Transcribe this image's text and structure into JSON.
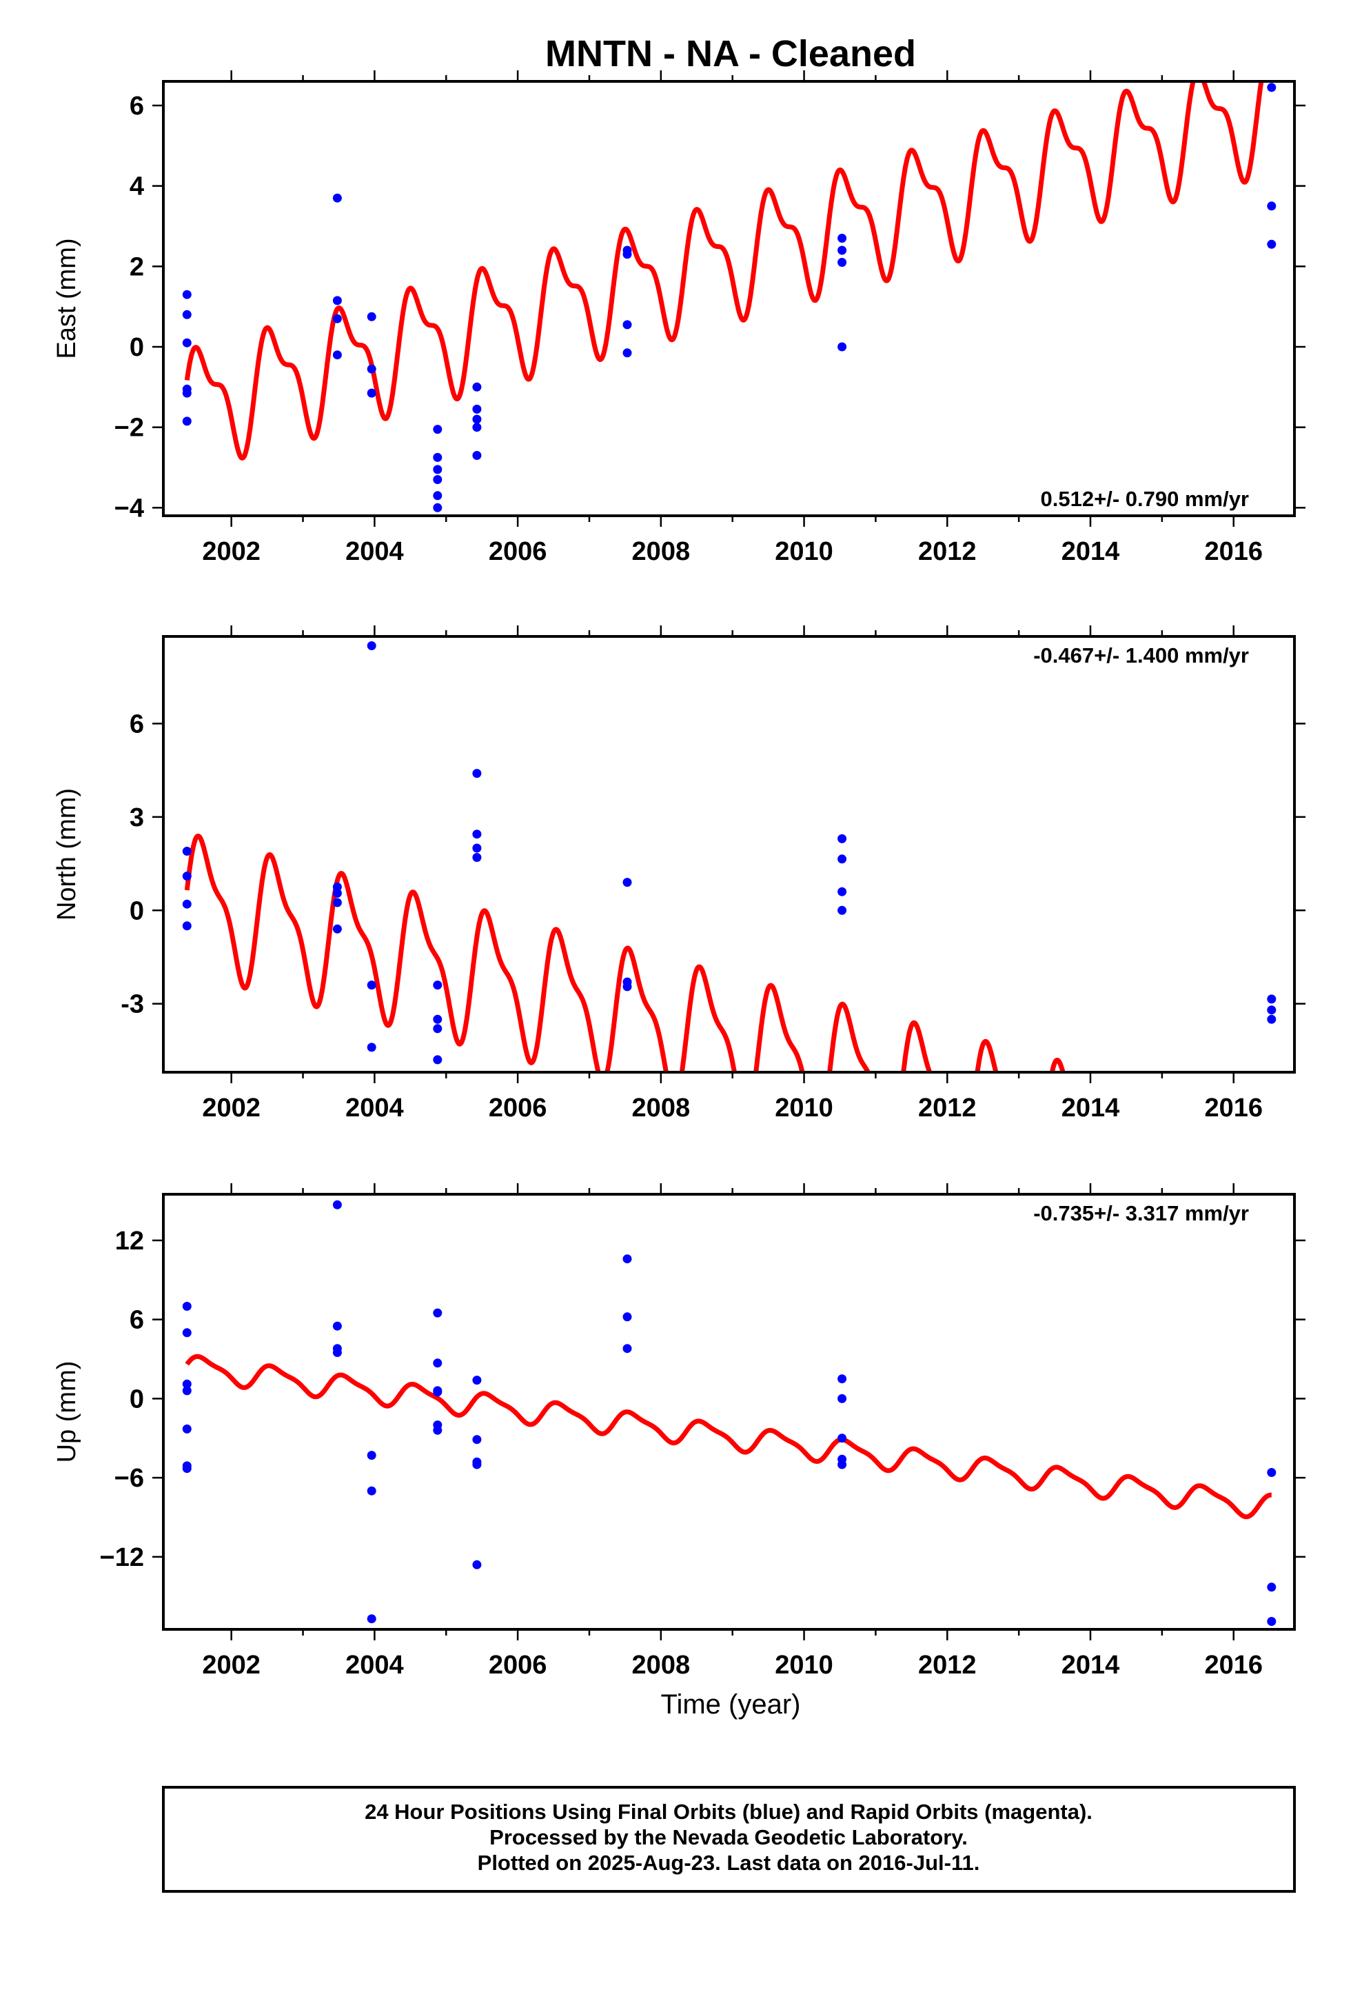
{
  "title": "MNTN  - NA - Cleaned",
  "xlabel": "Time (year)",
  "footer": {
    "line1": "24 Hour Positions Using Final Orbits (blue) and Rapid Orbits (magenta).",
    "line2": "Processed by the Nevada Geodetic Laboratory.",
    "line3": "Plotted on 2025-Aug-23. Last data on 2016-Jul-11."
  },
  "colors": {
    "data": "#0000ff",
    "model": "#ff0000",
    "frame": "#000000"
  },
  "chart_data": [
    {
      "type": "scatter",
      "ylabel": "East (mm)",
      "rate_label": "0.512+/- 0.790 mm/yr",
      "rate_position": "bottom-right",
      "xlim": [
        2001.05,
        2016.85
      ],
      "ylim": [
        -4.2,
        6.6
      ],
      "xticks": [
        2002,
        2004,
        2006,
        2008,
        2010,
        2012,
        2014,
        2016
      ],
      "yticks": [
        -4,
        -2,
        0,
        2,
        4,
        6
      ],
      "ytick_labels": [
        "−4",
        "−2",
        "0",
        "2",
        "4",
        "6"
      ],
      "show_x_tick_labels": true,
      "points": [
        [
          2001.38,
          1.3
        ],
        [
          2001.38,
          0.8
        ],
        [
          2001.38,
          0.1
        ],
        [
          2001.38,
          -1.05
        ],
        [
          2001.38,
          -1.15
        ],
        [
          2001.38,
          -1.85
        ],
        [
          2003.48,
          3.7
        ],
        [
          2003.48,
          1.15
        ],
        [
          2003.48,
          0.7
        ],
        [
          2003.48,
          -0.2
        ],
        [
          2003.96,
          0.75
        ],
        [
          2003.96,
          -0.55
        ],
        [
          2003.96,
          -1.15
        ],
        [
          2004.88,
          -2.05
        ],
        [
          2004.88,
          -2.75
        ],
        [
          2004.88,
          -3.05
        ],
        [
          2004.88,
          -3.3
        ],
        [
          2004.88,
          -3.7
        ],
        [
          2004.88,
          -4.0
        ],
        [
          2005.43,
          -1.0
        ],
        [
          2005.43,
          -1.55
        ],
        [
          2005.43,
          -1.8
        ],
        [
          2005.43,
          -2.0
        ],
        [
          2005.43,
          -2.7
        ],
        [
          2007.53,
          2.4
        ],
        [
          2007.53,
          2.3
        ],
        [
          2007.53,
          0.55
        ],
        [
          2007.53,
          -0.15
        ],
        [
          2010.53,
          2.7
        ],
        [
          2010.53,
          2.4
        ],
        [
          2010.53,
          2.1
        ],
        [
          2010.53,
          0.0
        ],
        [
          2016.53,
          6.45
        ],
        [
          2016.53,
          3.5
        ],
        [
          2016.53,
          2.55
        ]
      ],
      "model": {
        "intercept": -1.45,
        "rate": 0.49,
        "t0": 2001.4,
        "annual_amp": 1.25,
        "annual_phase": 0.3,
        "semi_amp": 0.55,
        "semi_phase": 1.1,
        "t_start": 2001.38,
        "t_end": 2016.53
      }
    },
    {
      "type": "scatter",
      "ylabel": "North (mm)",
      "rate_label": "-0.467+/- 1.400 mm/yr",
      "rate_position": "top-right",
      "xlim": [
        2001.05,
        2016.85
      ],
      "ylim": [
        -5.2,
        8.8
      ],
      "xticks": [
        2002,
        2004,
        2006,
        2008,
        2010,
        2012,
        2014,
        2016
      ],
      "yticks": [
        -3,
        0,
        3,
        6
      ],
      "ytick_labels": [
        "-3",
        "0",
        "3",
        "6"
      ],
      "show_x_tick_labels": true,
      "points": [
        [
          2001.38,
          1.9
        ],
        [
          2001.38,
          1.1
        ],
        [
          2001.38,
          0.2
        ],
        [
          2001.38,
          -0.5
        ],
        [
          2003.48,
          0.75
        ],
        [
          2003.48,
          0.55
        ],
        [
          2003.48,
          0.25
        ],
        [
          2003.48,
          -0.6
        ],
        [
          2003.96,
          8.5
        ],
        [
          2003.96,
          -2.4
        ],
        [
          2003.96,
          -4.4
        ],
        [
          2004.88,
          -2.4
        ],
        [
          2004.88,
          -3.5
        ],
        [
          2004.88,
          -3.8
        ],
        [
          2004.88,
          -4.8
        ],
        [
          2005.43,
          4.4
        ],
        [
          2005.43,
          2.45
        ],
        [
          2005.43,
          2.0
        ],
        [
          2005.43,
          1.7
        ],
        [
          2007.53,
          0.9
        ],
        [
          2007.53,
          -2.3
        ],
        [
          2007.53,
          -2.45
        ],
        [
          2010.53,
          2.3
        ],
        [
          2010.53,
          1.65
        ],
        [
          2010.53,
          0.6
        ],
        [
          2010.53,
          0.0
        ],
        [
          2016.53,
          -2.85
        ],
        [
          2016.53,
          -3.2
        ],
        [
          2016.53,
          -3.5
        ]
      ],
      "model": {
        "intercept": 0.35,
        "rate": -0.6,
        "t0": 2001.4,
        "annual_amp": 1.9,
        "annual_phase": 0.15,
        "semi_amp": 0.7,
        "semi_phase": 0.6,
        "t_start": 2001.38,
        "t_end": 2016.53
      }
    },
    {
      "type": "scatter",
      "ylabel": "Up (mm)",
      "rate_label": "-0.735+/- 3.317 mm/yr",
      "rate_position": "top-right",
      "xlim": [
        2001.05,
        2016.85
      ],
      "ylim": [
        -17.5,
        15.5
      ],
      "xticks": [
        2002,
        2004,
        2006,
        2008,
        2010,
        2012,
        2014,
        2016
      ],
      "yticks": [
        -12,
        -6,
        0,
        6,
        12
      ],
      "ytick_labels": [
        "−12",
        "−6",
        "0",
        "6",
        "12"
      ],
      "show_x_tick_labels": true,
      "points": [
        [
          2001.38,
          7.0
        ],
        [
          2001.38,
          5.0
        ],
        [
          2001.38,
          1.1
        ],
        [
          2001.38,
          0.6
        ],
        [
          2001.38,
          -2.3
        ],
        [
          2001.38,
          -5.1
        ],
        [
          2001.38,
          -5.3
        ],
        [
          2003.48,
          14.7
        ],
        [
          2003.48,
          5.5
        ],
        [
          2003.48,
          3.8
        ],
        [
          2003.48,
          3.5
        ],
        [
          2003.96,
          -4.3
        ],
        [
          2003.96,
          -7.0
        ],
        [
          2003.96,
          -16.7
        ],
        [
          2004.88,
          6.5
        ],
        [
          2004.88,
          2.7
        ],
        [
          2004.88,
          0.6
        ],
        [
          2004.88,
          0.5
        ],
        [
          2004.88,
          -2.0
        ],
        [
          2004.88,
          -2.4
        ],
        [
          2005.43,
          1.4
        ],
        [
          2005.43,
          -3.1
        ],
        [
          2005.43,
          -4.8
        ],
        [
          2005.43,
          -5.0
        ],
        [
          2005.43,
          -12.6
        ],
        [
          2007.53,
          10.6
        ],
        [
          2007.53,
          6.2
        ],
        [
          2007.53,
          3.8
        ],
        [
          2010.53,
          1.5
        ],
        [
          2010.53,
          0.0
        ],
        [
          2010.53,
          -3.0
        ],
        [
          2010.53,
          -4.6
        ],
        [
          2010.53,
          -5.0
        ],
        [
          2016.53,
          -5.6
        ],
        [
          2016.53,
          -14.3
        ],
        [
          2016.53,
          -16.9
        ]
      ],
      "model": {
        "intercept": 2.4,
        "rate": -0.7,
        "t0": 2001.4,
        "annual_amp": 0.85,
        "annual_phase": 0.2,
        "semi_amp": 0.25,
        "semi_phase": 0.8,
        "t_start": 2001.38,
        "t_end": 2016.53
      }
    }
  ]
}
